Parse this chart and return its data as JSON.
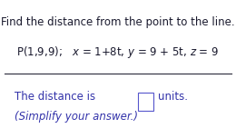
{
  "title": "Find the distance from the point to the line.",
  "eq_line": "P(1,9,9);   x = 1+8t, y = 9 + 5t, z = 9",
  "dist_text": "The distance is",
  "units_text": "units.",
  "simplify_text": "(Simplify your answer.)",
  "bg_color": "#ffffff",
  "text_color_dark": "#1a1a2e",
  "text_color_blue": "#3333aa",
  "box_edge_color": "#5555cc",
  "sep_line_color": "#2a2a3a",
  "title_fontsize": 8.5,
  "body_fontsize": 8.5,
  "fig_width": 2.6,
  "fig_height": 1.52,
  "dpi": 100
}
